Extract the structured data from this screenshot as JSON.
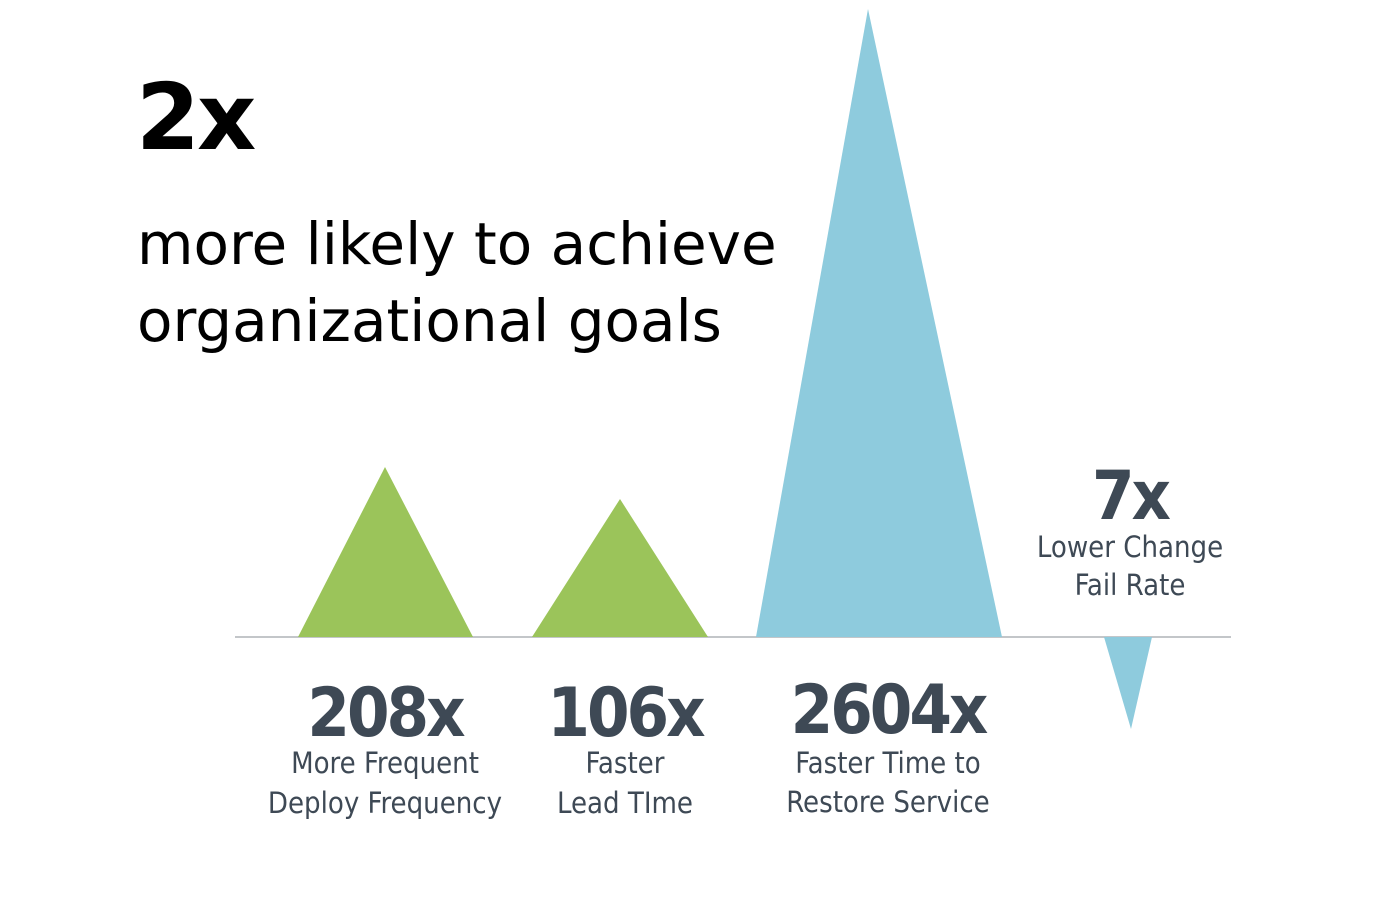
{
  "headline": {
    "value": "2x",
    "subtitle_lines": [
      "more likely to achieve",
      "organizational goals"
    ]
  },
  "colors": {
    "green": "#9bc45a",
    "blue": "#8ecbdd",
    "baseline": "#c3c6c9",
    "text": "#3e4955"
  },
  "chart_data": {
    "type": "bar",
    "title": "",
    "baseline": true,
    "series": [
      {
        "value": 208,
        "display": "208x",
        "label_lines": [
          "More Frequent",
          "Deploy Frequency"
        ],
        "direction": "up",
        "color": "green"
      },
      {
        "value": 106,
        "display": "106x",
        "label_lines": [
          "Faster",
          "Lead TIme"
        ],
        "direction": "up",
        "color": "green"
      },
      {
        "value": 2604,
        "display": "2604x",
        "label_lines": [
          "Faster Time to",
          "Restore Service"
        ],
        "direction": "up",
        "color": "blue"
      },
      {
        "value": 7,
        "display": "7x",
        "label_lines": [
          "Lower Change",
          "Fail Rate"
        ],
        "direction": "down",
        "color": "blue"
      }
    ]
  }
}
